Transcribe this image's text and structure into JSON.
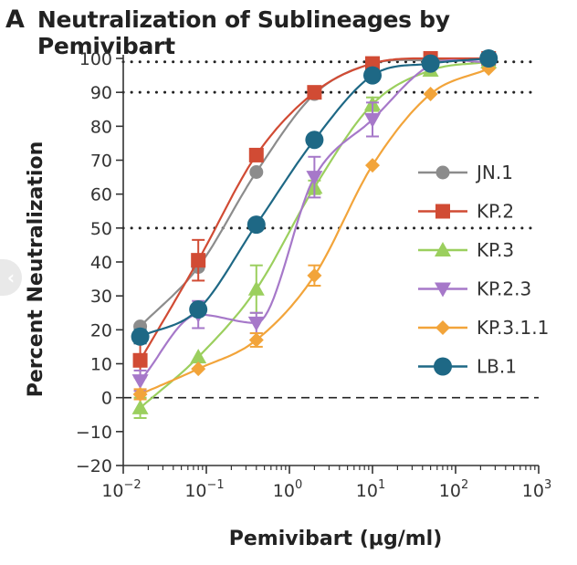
{
  "panel_label": "A",
  "chart_data": {
    "type": "scatter",
    "title": "Neutralization of Sublineages by Pemivibart",
    "xlabel": "Pemivibart (μg/ml)",
    "ylabel": "Percent Neutralization",
    "xscale": "log",
    "xlim": [
      0.01,
      1000
    ],
    "ylim": [
      -20,
      100
    ],
    "x_ticks": [
      0.01,
      0.1,
      1,
      10,
      100,
      1000
    ],
    "x_tick_labels": [
      {
        "base": "10",
        "exp": "−2"
      },
      {
        "base": "10",
        "exp": "−1"
      },
      {
        "base": "10",
        "exp": "0"
      },
      {
        "base": "10",
        "exp": "1"
      },
      {
        "base": "10",
        "exp": "2"
      },
      {
        "base": "10",
        "exp": "3"
      }
    ],
    "y_ticks": [
      "100",
      "90",
      "80",
      "70",
      "60",
      "50",
      "40",
      "30",
      "20",
      "10",
      "0",
      "−10",
      "−20"
    ],
    "reference_lines": [
      {
        "y": 99,
        "style": "dotted"
      },
      {
        "y": 90,
        "style": "dotted"
      },
      {
        "y": 50,
        "style": "dotted"
      },
      {
        "y": 0,
        "style": "dashed"
      }
    ],
    "legend_position": "right",
    "x": [
      0.016,
      0.08,
      0.4,
      2,
      10,
      50,
      250
    ],
    "series": [
      {
        "name": "JN.1",
        "color": "#8c8c8c",
        "marker": "circle",
        "values": [
          21,
          38.5,
          66.5,
          89.5,
          98.5,
          99.5,
          100
        ],
        "errors": [
          1,
          1,
          1,
          1,
          0.5,
          0.5,
          0.5
        ]
      },
      {
        "name": "KP.2",
        "color": "#d14b34",
        "marker": "square",
        "values": [
          11,
          40.5,
          71.5,
          90,
          98.5,
          100,
          100
        ],
        "errors": [
          5,
          6,
          1,
          1,
          0.5,
          0.5,
          0.5
        ]
      },
      {
        "name": "KP.3",
        "color": "#9bcf5e",
        "marker": "triangle-up",
        "values": [
          -3,
          12,
          32,
          62,
          86.5,
          96.5,
          99
        ],
        "errors": [
          3,
          1,
          7,
          2,
          2,
          1,
          0.5
        ]
      },
      {
        "name": "KP.2.3",
        "color": "#a678c9",
        "marker": "triangle-down",
        "values": [
          5,
          24.5,
          22,
          65,
          82,
          98,
          99
        ],
        "errors": [
          3,
          4,
          3,
          6,
          5,
          1,
          0.5
        ]
      },
      {
        "name": "KP.3.1.1",
        "color": "#f2a43a",
        "marker": "diamond",
        "values": [
          1,
          8.5,
          17,
          36,
          68.5,
          89.5,
          97
        ],
        "errors": [
          1.5,
          1,
          2,
          3,
          1,
          1,
          0.5
        ]
      },
      {
        "name": "LB.1",
        "color": "#1e6885",
        "marker": "circle-large",
        "values": [
          18,
          26,
          51,
          76,
          95,
          98.5,
          100
        ],
        "errors": [
          2,
          1,
          1,
          1,
          1,
          1,
          0.5
        ]
      }
    ]
  }
}
